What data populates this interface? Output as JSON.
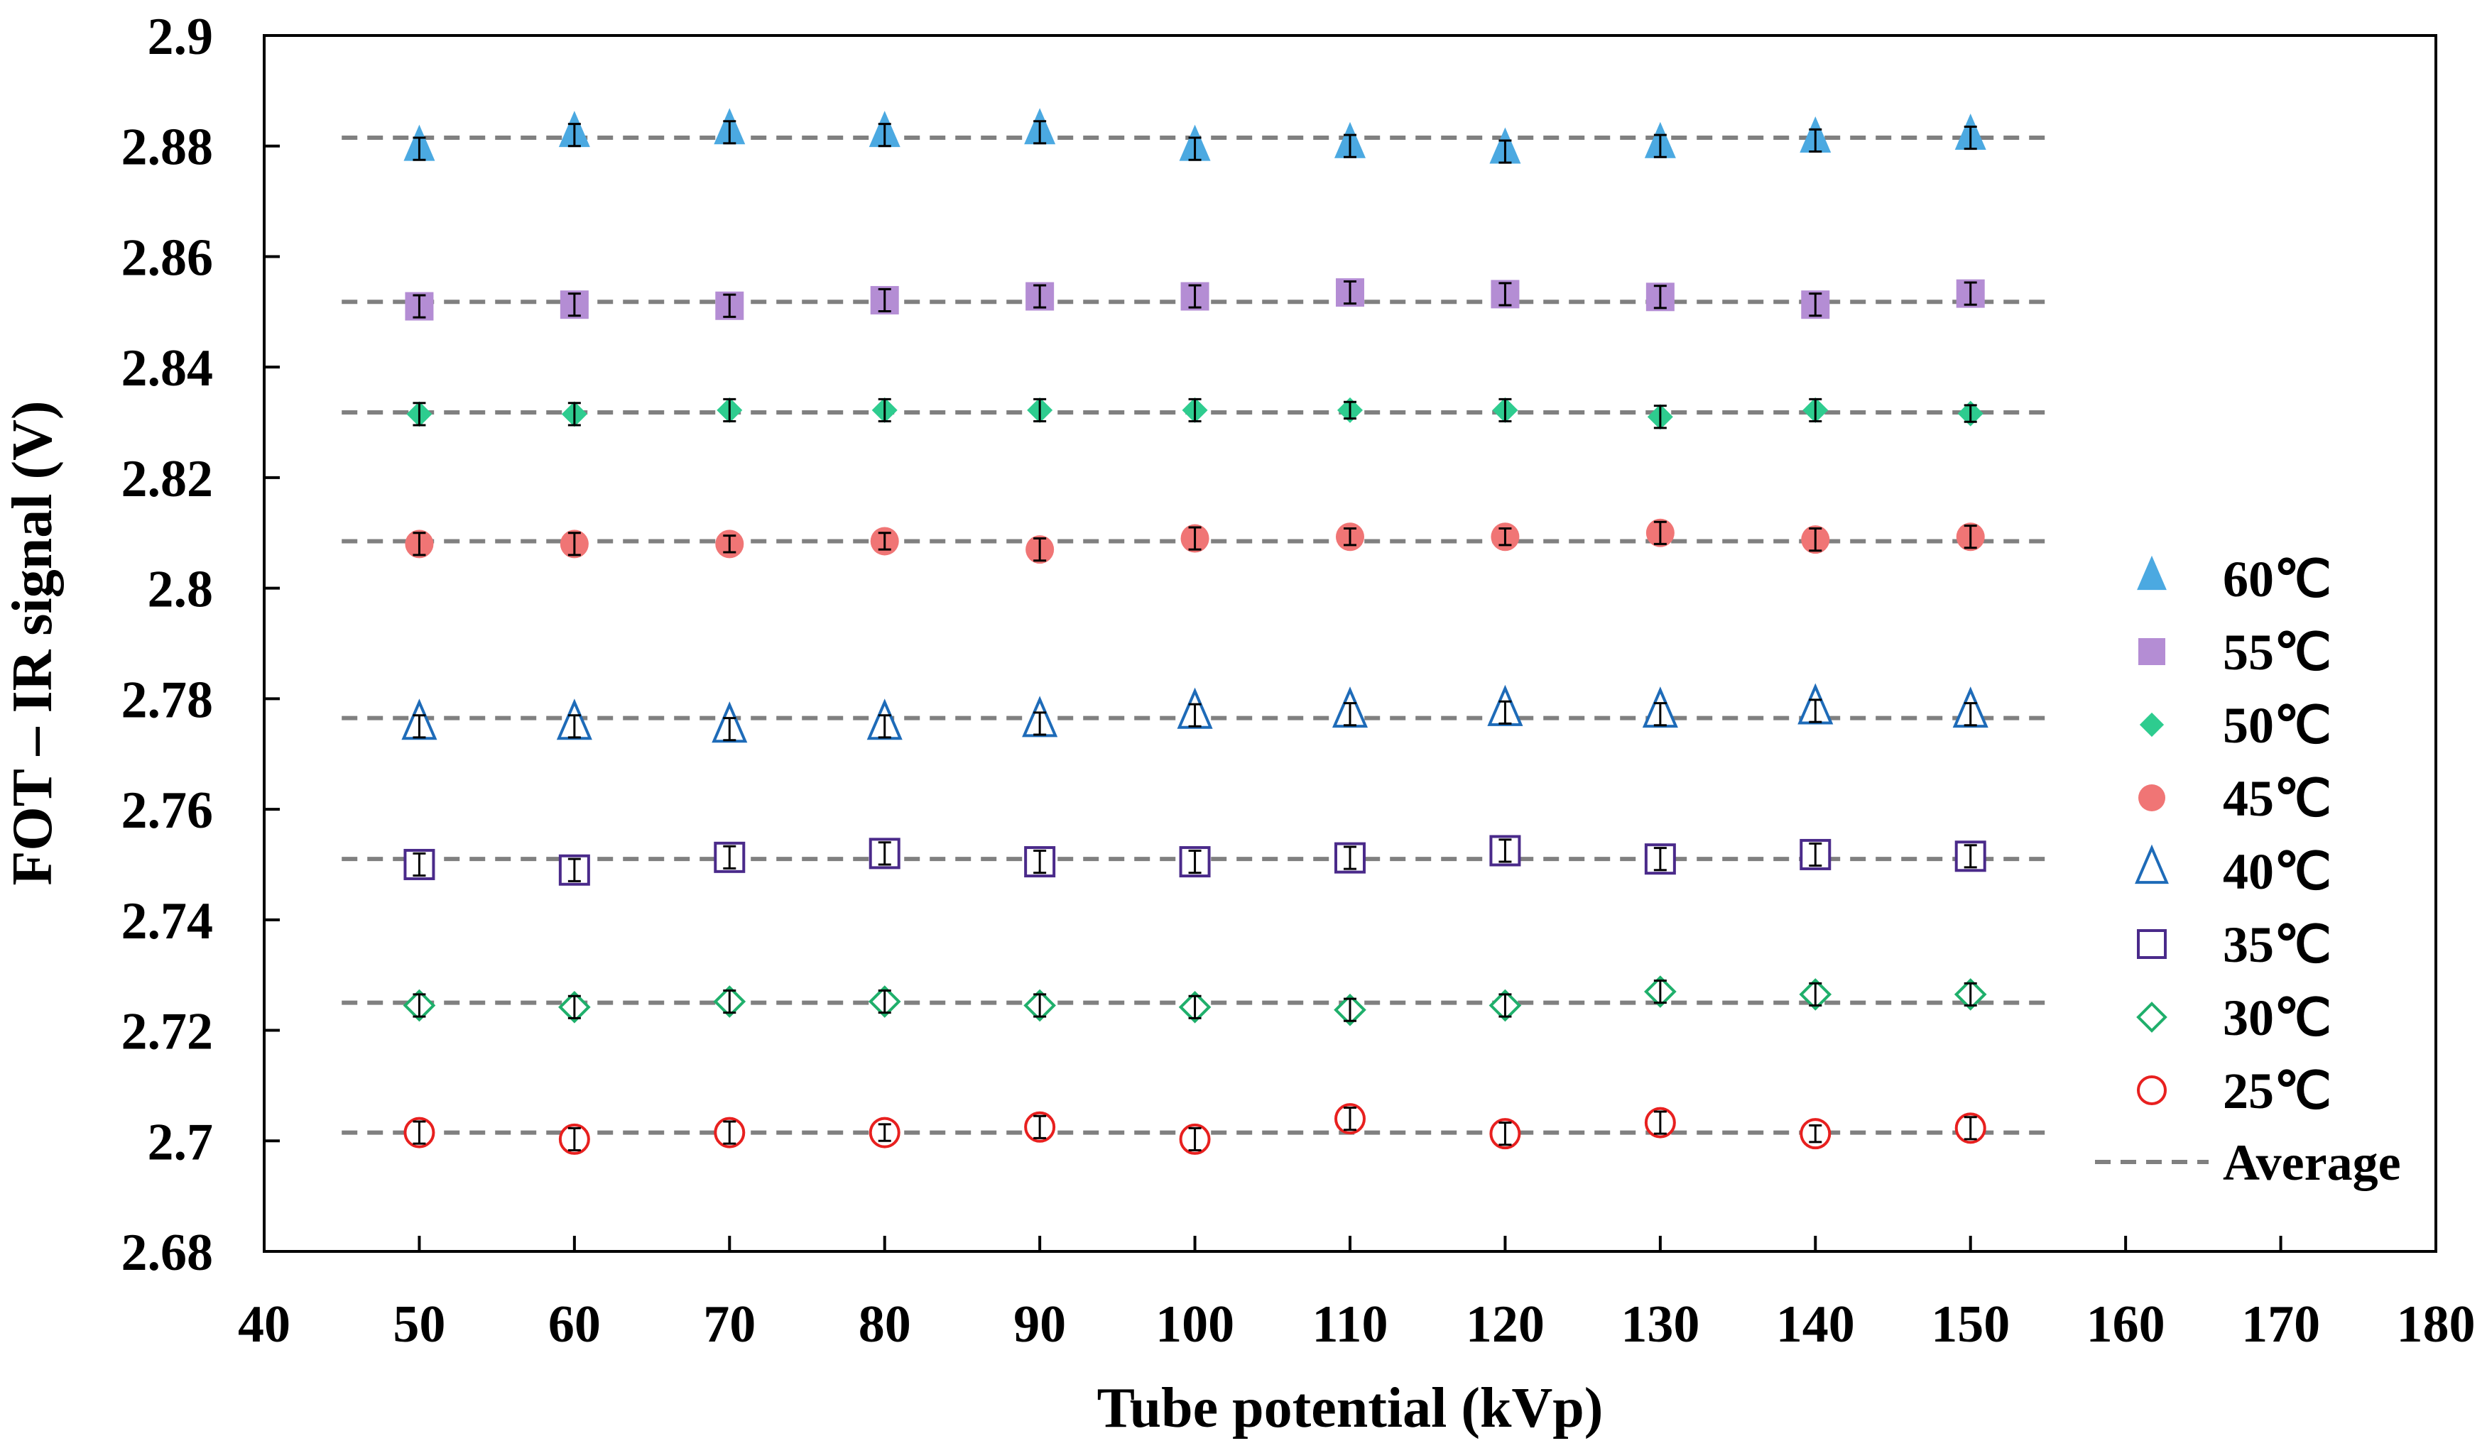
{
  "chart_data": {
    "type": "scatter",
    "title": "",
    "xlabel": "Tube potential (kVp)",
    "ylabel": "FOT – IR signal (V)",
    "xlim": [
      40,
      180
    ],
    "ylim": [
      2.68,
      2.9
    ],
    "xticks": [
      "40",
      "50",
      "60",
      "70",
      "80",
      "90",
      "100",
      "110",
      "120",
      "130",
      "140",
      "150",
      "160",
      "170",
      "180"
    ],
    "yticks": [
      "2.68",
      "2.7",
      "2.72",
      "2.74",
      "2.76",
      "2.78",
      "2.8",
      "2.82",
      "2.84",
      "2.86",
      "2.88",
      "2.9"
    ],
    "grid": false,
    "legend_position": "right",
    "x": [
      50,
      60,
      70,
      80,
      90,
      100,
      110,
      120,
      130,
      140,
      150
    ],
    "series": [
      {
        "name": "60℃",
        "marker": "triangle",
        "filled": true,
        "color": "#4BA9E1",
        "average": 2.8815,
        "values": [
          2.8795,
          2.882,
          2.8825,
          2.882,
          2.8825,
          2.8795,
          2.88,
          2.879,
          2.88,
          2.881,
          2.8815
        ],
        "errors": [
          0.002,
          0.002,
          0.002,
          0.002,
          0.002,
          0.002,
          0.002,
          0.002,
          0.002,
          0.002,
          0.002
        ]
      },
      {
        "name": "55℃",
        "marker": "square",
        "filled": true,
        "color": "#B48DD4",
        "average": 2.8518,
        "values": [
          2.851,
          2.8513,
          2.8511,
          2.8521,
          2.8528,
          2.8528,
          2.8535,
          2.8532,
          2.8527,
          2.8513,
          2.8533
        ],
        "errors": [
          0.002,
          0.002,
          0.002,
          0.002,
          0.002,
          0.002,
          0.002,
          0.002,
          0.002,
          0.002,
          0.002
        ]
      },
      {
        "name": "50℃",
        "marker": "diamond",
        "filled": true,
        "color": "#2ECC8F",
        "average": 2.8318,
        "values": [
          2.8315,
          2.8315,
          2.8322,
          2.8322,
          2.8322,
          2.8322,
          2.8322,
          2.8322,
          2.831,
          2.8322,
          2.8316
        ],
        "errors": [
          0.002,
          0.002,
          0.002,
          0.002,
          0.002,
          0.002,
          0.0015,
          0.002,
          0.002,
          0.002,
          0.0015
        ]
      },
      {
        "name": "45℃",
        "marker": "circle",
        "filled": true,
        "color": "#F07575",
        "average": 2.8085,
        "values": [
          2.808,
          2.808,
          2.808,
          2.8085,
          2.807,
          2.809,
          2.8093,
          2.8093,
          2.81,
          2.8088,
          2.8093
        ],
        "errors": [
          0.002,
          0.002,
          0.0015,
          0.0015,
          0.002,
          0.002,
          0.0015,
          0.0015,
          0.002,
          0.002,
          0.002
        ]
      },
      {
        "name": "40℃",
        "marker": "triangle",
        "filled": false,
        "color": "#1E6BB8",
        "average": 2.7765,
        "values": [
          2.775,
          2.775,
          2.7745,
          2.775,
          2.7755,
          2.777,
          2.7772,
          2.7775,
          2.7772,
          2.7778,
          2.7772
        ],
        "errors": [
          0.002,
          0.002,
          0.002,
          0.002,
          0.002,
          0.002,
          0.002,
          0.002,
          0.002,
          0.002,
          0.002
        ]
      },
      {
        "name": "35℃",
        "marker": "square",
        "filled": false,
        "color": "#4A2A8A",
        "average": 2.751,
        "values": [
          2.75,
          2.749,
          2.7513,
          2.752,
          2.7505,
          2.7505,
          2.7512,
          2.7525,
          2.751,
          2.7518,
          2.7515
        ],
        "errors": [
          0.002,
          0.002,
          0.002,
          0.002,
          0.002,
          0.002,
          0.002,
          0.002,
          0.002,
          0.002,
          0.002
        ]
      },
      {
        "name": "30℃",
        "marker": "diamond",
        "filled": false,
        "color": "#1FAF6B",
        "average": 2.725,
        "values": [
          2.7245,
          2.7242,
          2.7252,
          2.7252,
          2.7245,
          2.7242,
          2.7237,
          2.7245,
          2.727,
          2.7265,
          2.7265
        ],
        "errors": [
          0.002,
          0.002,
          0.002,
          0.002,
          0.002,
          0.002,
          0.002,
          0.002,
          0.002,
          0.002,
          0.002
        ]
      },
      {
        "name": "25℃",
        "marker": "circle",
        "filled": false,
        "color": "#E8201F",
        "average": 2.7015,
        "values": [
          2.7015,
          2.7003,
          2.7015,
          2.7015,
          2.7025,
          2.7003,
          2.704,
          2.7013,
          2.7033,
          2.7013,
          2.7023
        ],
        "errors": [
          0.002,
          0.002,
          0.002,
          0.0015,
          0.002,
          0.002,
          0.002,
          0.002,
          0.002,
          0.0015,
          0.002
        ]
      }
    ],
    "average_line": {
      "name": "Average",
      "color": "#808080",
      "x_range": [
        45,
        155
      ]
    }
  }
}
